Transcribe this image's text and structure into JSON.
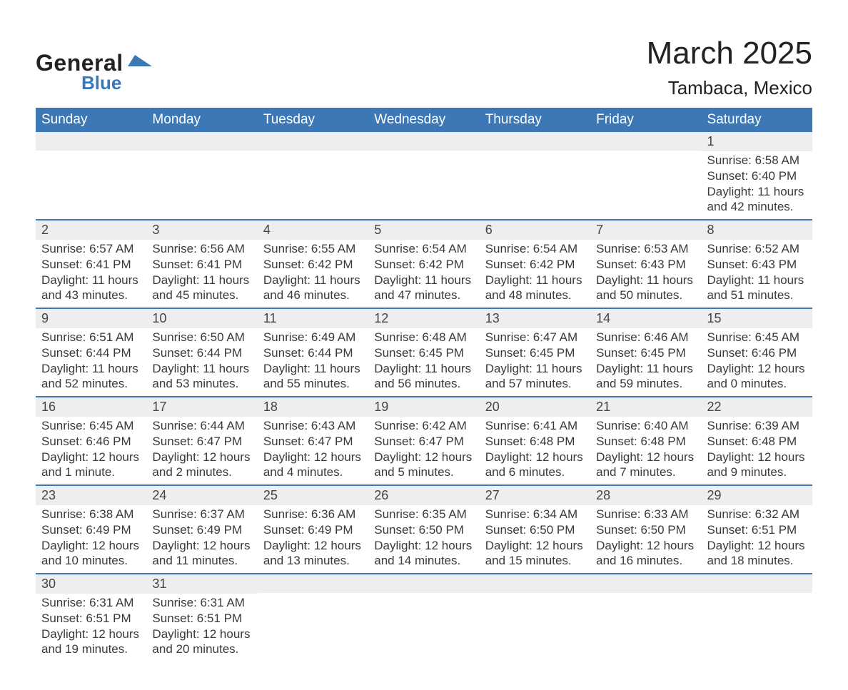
{
  "logo": {
    "text1": "General",
    "text2": "Blue",
    "wedge_color": "#3b78b5"
  },
  "header": {
    "title": "March 2025",
    "location": "Tambaca, Mexico"
  },
  "colors": {
    "header_bg": "#3b78b5",
    "header_text": "#ffffff",
    "strip_bg": "#eceeef",
    "row_divider": "#3b78b5",
    "body_text": "#3a3a3a"
  },
  "day_headers": [
    "Sunday",
    "Monday",
    "Tuesday",
    "Wednesday",
    "Thursday",
    "Friday",
    "Saturday"
  ],
  "weeks": [
    [
      {
        "empty": true
      },
      {
        "empty": true
      },
      {
        "empty": true
      },
      {
        "empty": true
      },
      {
        "empty": true
      },
      {
        "empty": true
      },
      {
        "num": "1",
        "sunrise": "Sunrise: 6:58 AM",
        "sunset": "Sunset: 6:40 PM",
        "daylight": "Daylight: 11 hours and 42 minutes."
      }
    ],
    [
      {
        "num": "2",
        "sunrise": "Sunrise: 6:57 AM",
        "sunset": "Sunset: 6:41 PM",
        "daylight": "Daylight: 11 hours and 43 minutes."
      },
      {
        "num": "3",
        "sunrise": "Sunrise: 6:56 AM",
        "sunset": "Sunset: 6:41 PM",
        "daylight": "Daylight: 11 hours and 45 minutes."
      },
      {
        "num": "4",
        "sunrise": "Sunrise: 6:55 AM",
        "sunset": "Sunset: 6:42 PM",
        "daylight": "Daylight: 11 hours and 46 minutes."
      },
      {
        "num": "5",
        "sunrise": "Sunrise: 6:54 AM",
        "sunset": "Sunset: 6:42 PM",
        "daylight": "Daylight: 11 hours and 47 minutes."
      },
      {
        "num": "6",
        "sunrise": "Sunrise: 6:54 AM",
        "sunset": "Sunset: 6:42 PM",
        "daylight": "Daylight: 11 hours and 48 minutes."
      },
      {
        "num": "7",
        "sunrise": "Sunrise: 6:53 AM",
        "sunset": "Sunset: 6:43 PM",
        "daylight": "Daylight: 11 hours and 50 minutes."
      },
      {
        "num": "8",
        "sunrise": "Sunrise: 6:52 AM",
        "sunset": "Sunset: 6:43 PM",
        "daylight": "Daylight: 11 hours and 51 minutes."
      }
    ],
    [
      {
        "num": "9",
        "sunrise": "Sunrise: 6:51 AM",
        "sunset": "Sunset: 6:44 PM",
        "daylight": "Daylight: 11 hours and 52 minutes."
      },
      {
        "num": "10",
        "sunrise": "Sunrise: 6:50 AM",
        "sunset": "Sunset: 6:44 PM",
        "daylight": "Daylight: 11 hours and 53 minutes."
      },
      {
        "num": "11",
        "sunrise": "Sunrise: 6:49 AM",
        "sunset": "Sunset: 6:44 PM",
        "daylight": "Daylight: 11 hours and 55 minutes."
      },
      {
        "num": "12",
        "sunrise": "Sunrise: 6:48 AM",
        "sunset": "Sunset: 6:45 PM",
        "daylight": "Daylight: 11 hours and 56 minutes."
      },
      {
        "num": "13",
        "sunrise": "Sunrise: 6:47 AM",
        "sunset": "Sunset: 6:45 PM",
        "daylight": "Daylight: 11 hours and 57 minutes."
      },
      {
        "num": "14",
        "sunrise": "Sunrise: 6:46 AM",
        "sunset": "Sunset: 6:45 PM",
        "daylight": "Daylight: 11 hours and 59 minutes."
      },
      {
        "num": "15",
        "sunrise": "Sunrise: 6:45 AM",
        "sunset": "Sunset: 6:46 PM",
        "daylight": "Daylight: 12 hours and 0 minutes."
      }
    ],
    [
      {
        "num": "16",
        "sunrise": "Sunrise: 6:45 AM",
        "sunset": "Sunset: 6:46 PM",
        "daylight": "Daylight: 12 hours and 1 minute."
      },
      {
        "num": "17",
        "sunrise": "Sunrise: 6:44 AM",
        "sunset": "Sunset: 6:47 PM",
        "daylight": "Daylight: 12 hours and 2 minutes."
      },
      {
        "num": "18",
        "sunrise": "Sunrise: 6:43 AM",
        "sunset": "Sunset: 6:47 PM",
        "daylight": "Daylight: 12 hours and 4 minutes."
      },
      {
        "num": "19",
        "sunrise": "Sunrise: 6:42 AM",
        "sunset": "Sunset: 6:47 PM",
        "daylight": "Daylight: 12 hours and 5 minutes."
      },
      {
        "num": "20",
        "sunrise": "Sunrise: 6:41 AM",
        "sunset": "Sunset: 6:48 PM",
        "daylight": "Daylight: 12 hours and 6 minutes."
      },
      {
        "num": "21",
        "sunrise": "Sunrise: 6:40 AM",
        "sunset": "Sunset: 6:48 PM",
        "daylight": "Daylight: 12 hours and 7 minutes."
      },
      {
        "num": "22",
        "sunrise": "Sunrise: 6:39 AM",
        "sunset": "Sunset: 6:48 PM",
        "daylight": "Daylight: 12 hours and 9 minutes."
      }
    ],
    [
      {
        "num": "23",
        "sunrise": "Sunrise: 6:38 AM",
        "sunset": "Sunset: 6:49 PM",
        "daylight": "Daylight: 12 hours and 10 minutes."
      },
      {
        "num": "24",
        "sunrise": "Sunrise: 6:37 AM",
        "sunset": "Sunset: 6:49 PM",
        "daylight": "Daylight: 12 hours and 11 minutes."
      },
      {
        "num": "25",
        "sunrise": "Sunrise: 6:36 AM",
        "sunset": "Sunset: 6:49 PM",
        "daylight": "Daylight: 12 hours and 13 minutes."
      },
      {
        "num": "26",
        "sunrise": "Sunrise: 6:35 AM",
        "sunset": "Sunset: 6:50 PM",
        "daylight": "Daylight: 12 hours and 14 minutes."
      },
      {
        "num": "27",
        "sunrise": "Sunrise: 6:34 AM",
        "sunset": "Sunset: 6:50 PM",
        "daylight": "Daylight: 12 hours and 15 minutes."
      },
      {
        "num": "28",
        "sunrise": "Sunrise: 6:33 AM",
        "sunset": "Sunset: 6:50 PM",
        "daylight": "Daylight: 12 hours and 16 minutes."
      },
      {
        "num": "29",
        "sunrise": "Sunrise: 6:32 AM",
        "sunset": "Sunset: 6:51 PM",
        "daylight": "Daylight: 12 hours and 18 minutes."
      }
    ],
    [
      {
        "num": "30",
        "sunrise": "Sunrise: 6:31 AM",
        "sunset": "Sunset: 6:51 PM",
        "daylight": "Daylight: 12 hours and 19 minutes."
      },
      {
        "num": "31",
        "sunrise": "Sunrise: 6:31 AM",
        "sunset": "Sunset: 6:51 PM",
        "daylight": "Daylight: 12 hours and 20 minutes."
      },
      {
        "empty": true
      },
      {
        "empty": true
      },
      {
        "empty": true
      },
      {
        "empty": true
      },
      {
        "empty": true
      }
    ]
  ]
}
